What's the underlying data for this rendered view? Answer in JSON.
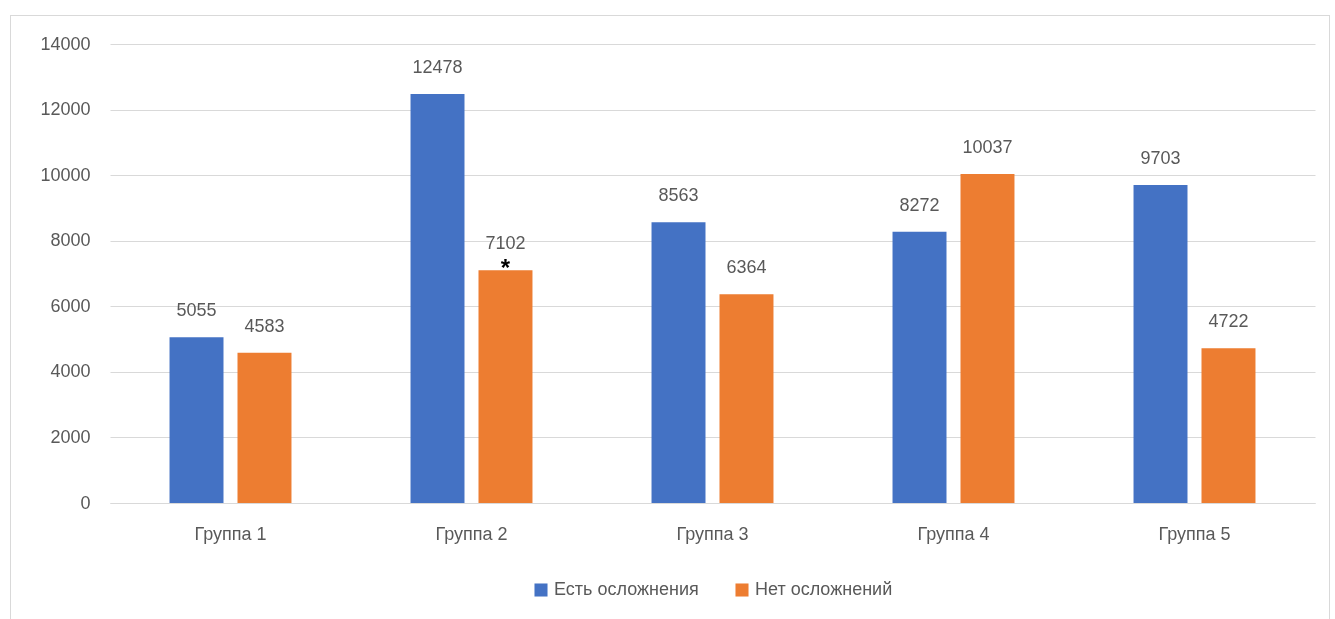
{
  "chart_data": {
    "type": "bar",
    "categories": [
      "Группа 1",
      "Группа 2",
      "Группа 3",
      "Группа 4",
      "Группа 5"
    ],
    "series": [
      {
        "name": "Есть осложнения",
        "color": "#4472c4",
        "values": [
          5055,
          12478,
          8563,
          8272,
          9703
        ]
      },
      {
        "name": "Нет осложнений",
        "color": "#ed7d31",
        "values": [
          4583,
          7102,
          6364,
          10037,
          4722
        ]
      }
    ],
    "ylim": [
      0,
      14000
    ],
    "yticks": [
      0,
      2000,
      4000,
      6000,
      8000,
      10000,
      12000,
      14000
    ],
    "grid": "y",
    "legend": "bottom",
    "data_labels": true,
    "annotations": [
      "*"
    ]
  }
}
